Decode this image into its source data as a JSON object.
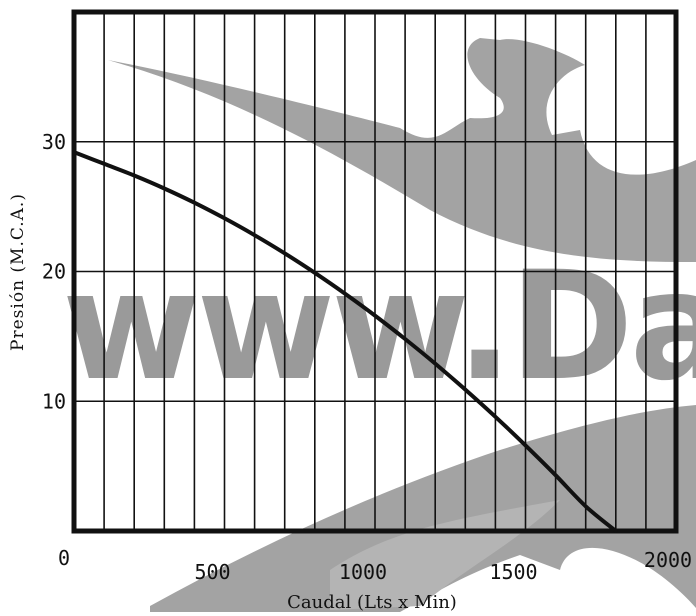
{
  "chart_data": {
    "type": "line",
    "title": "",
    "xlabel": "Caudal (Lts x Min)",
    "ylabel": "Presión (M.C.A.)",
    "xlim": [
      0,
      2000
    ],
    "ylim": [
      0,
      40
    ],
    "x_ticks": [
      0,
      500,
      1000,
      1500,
      2000
    ],
    "x_tick_labels": [
      "0",
      "500",
      "1000",
      "1500",
      "2000"
    ],
    "y_ticks": [
      10,
      20,
      30
    ],
    "y_tick_labels": [
      "10",
      "20",
      "30"
    ],
    "grid": {
      "vertical_step": 100,
      "horizontal": [
        10,
        20,
        30
      ]
    },
    "series": [
      {
        "x": [
          0,
          100,
          200,
          300,
          400,
          500,
          600,
          700,
          800,
          900,
          1000,
          1100,
          1200,
          1300,
          1400,
          1500,
          1600,
          1700,
          1800
        ],
        "y": [
          29.2,
          28.3,
          27.4,
          26.4,
          25.3,
          24.1,
          22.8,
          21.4,
          19.9,
          18.3,
          16.6,
          14.8,
          12.9,
          10.9,
          8.8,
          6.6,
          4.3,
          1.9,
          0
        ],
        "color": "#111111"
      }
    ],
    "watermark": {
      "text": "www.Da",
      "color": "#9a9a9a"
    }
  }
}
